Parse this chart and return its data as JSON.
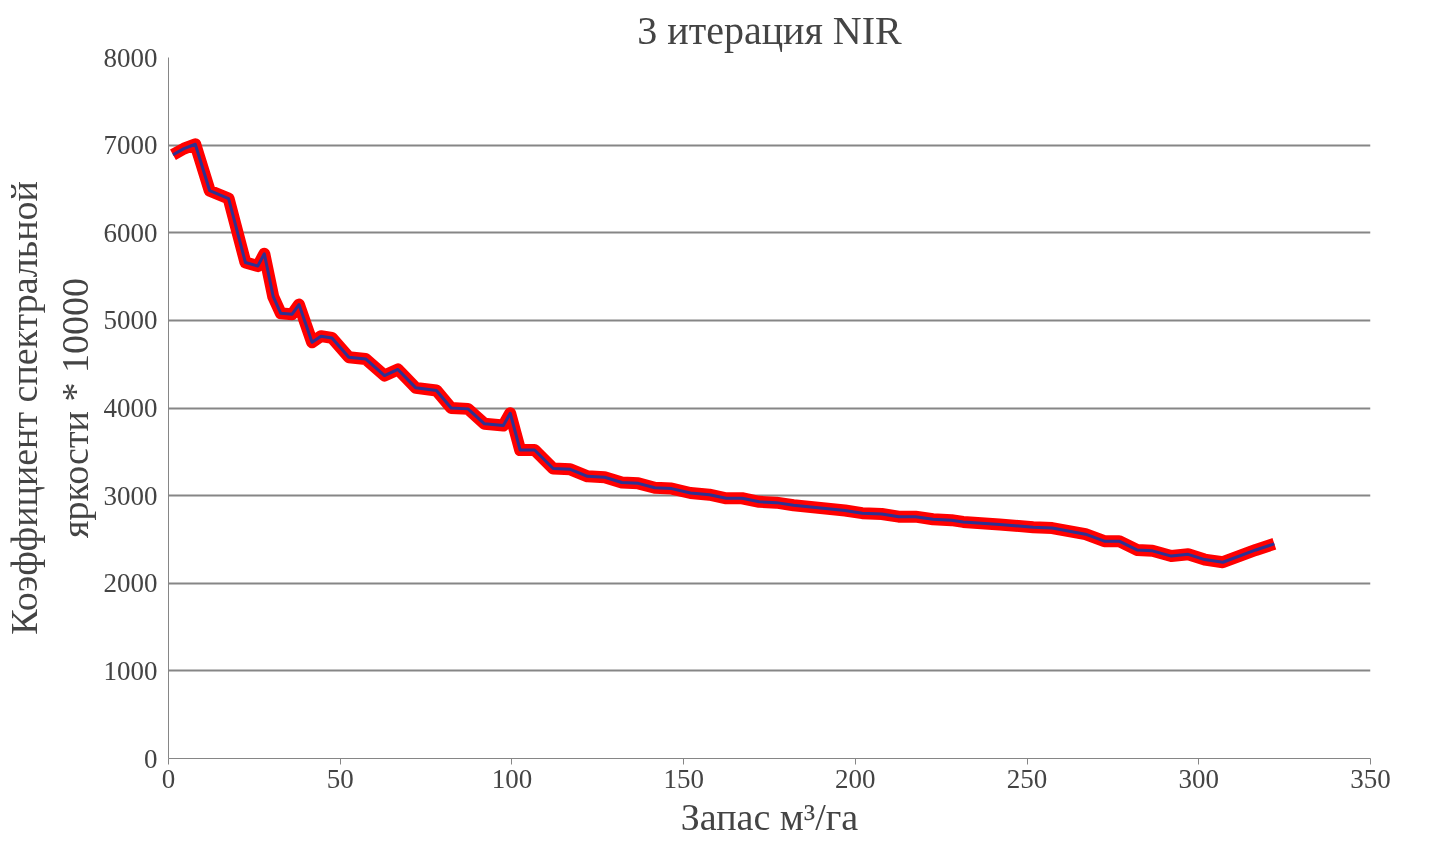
{
  "chart_data": {
    "type": "line",
    "title": "3 итерация NIR",
    "xlabel": "Запас м³/га",
    "ylabel": "Коэффициент спектральной\nяркости * 10000",
    "x": [
      1.3,
      4.5,
      7.8,
      12,
      17.5,
      22.4,
      26,
      27.9,
      30.5,
      32.7,
      36,
      38,
      41.8,
      44.4,
      47.6,
      52.5,
      57.4,
      62.9,
      66.8,
      72,
      78,
      82.3,
      87.2,
      92,
      97.5,
      99.5,
      102.4,
      106.6,
      112,
      117,
      122,
      127,
      132,
      136.8,
      141.6,
      146.5,
      152,
      157.5,
      162.4,
      167,
      172,
      177,
      182,
      187,
      192,
      197,
      202,
      207.7,
      212.6,
      217.5,
      222.6,
      228,
      231.4,
      242,
      251.8,
      257.3,
      267,
      272.5,
      276.8,
      282,
      286.5,
      292,
      296.9,
      301.7,
      307,
      316.6,
      322
    ],
    "series": [
      {
        "color": "#ff0000",
        "values": [
          6890,
          6960,
          7010,
          6480,
          6390,
          5660,
          5620,
          5760,
          5270,
          5080,
          5070,
          5180,
          4750,
          4820,
          4800,
          4580,
          4560,
          4370,
          4440,
          4230,
          4200,
          4000,
          3990,
          3820,
          3800,
          3940,
          3520,
          3520,
          3310,
          3300,
          3220,
          3210,
          3150,
          3140,
          3090,
          3080,
          3030,
          3010,
          2970,
          2970,
          2930,
          2920,
          2890,
          2870,
          2850,
          2830,
          2800,
          2790,
          2760,
          2760,
          2730,
          2720,
          2700,
          2670,
          2640,
          2630,
          2560,
          2480,
          2480,
          2380,
          2370,
          2310,
          2330,
          2270,
          2240,
          2380,
          2450
        ]
      },
      {
        "color": "#2e3192",
        "values": [
          6890,
          6960,
          7010,
          6480,
          6390,
          5660,
          5620,
          5760,
          5270,
          5080,
          5070,
          5180,
          4750,
          4820,
          4800,
          4580,
          4560,
          4370,
          4440,
          4230,
          4200,
          4000,
          3990,
          3820,
          3800,
          3940,
          3520,
          3520,
          3310,
          3300,
          3220,
          3210,
          3150,
          3140,
          3090,
          3080,
          3030,
          3010,
          2970,
          2970,
          2930,
          2920,
          2890,
          2870,
          2850,
          2830,
          2800,
          2790,
          2760,
          2760,
          2730,
          2720,
          2700,
          2670,
          2640,
          2630,
          2560,
          2480,
          2480,
          2380,
          2370,
          2310,
          2330,
          2270,
          2240,
          2380,
          2450
        ]
      }
    ],
    "xlim": [
      0,
      350
    ],
    "xticks": [
      0,
      50,
      100,
      150,
      200,
      250,
      300,
      350
    ],
    "ylim": [
      0,
      8000
    ],
    "yticks": [
      0,
      1000,
      2000,
      3000,
      4000,
      5000,
      6000,
      7000,
      8000
    ],
    "grid": "y",
    "marker": "none",
    "line_style": "solid"
  }
}
